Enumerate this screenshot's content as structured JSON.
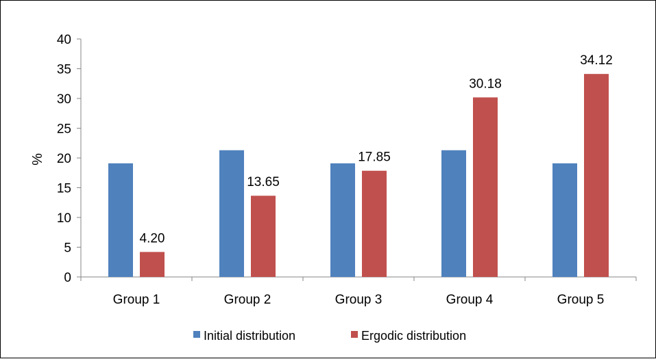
{
  "chart_data": {
    "type": "bar",
    "title": "",
    "xlabel": "",
    "ylabel": "%",
    "ylim": [
      0,
      40
    ],
    "yticks": [
      0,
      5,
      10,
      15,
      20,
      25,
      30,
      35,
      40
    ],
    "grid": false,
    "legend_position": "bottom",
    "categories": [
      "Group 1",
      "Group 2",
      "Group 3",
      "Group 4",
      "Group 5"
    ],
    "series": [
      {
        "name": "Initial distribution",
        "color": "#4f81bd",
        "values": [
          19.1,
          21.3,
          19.1,
          21.3,
          19.1
        ],
        "labels": [
          "",
          "",
          "",
          "",
          ""
        ]
      },
      {
        "name": "Ergodic distribution",
        "color": "#c0504d",
        "values": [
          4.2,
          13.65,
          17.85,
          30.18,
          34.12
        ],
        "labels": [
          "4.20",
          "13.65",
          "17.85",
          "30.18",
          "34.12"
        ]
      }
    ]
  }
}
